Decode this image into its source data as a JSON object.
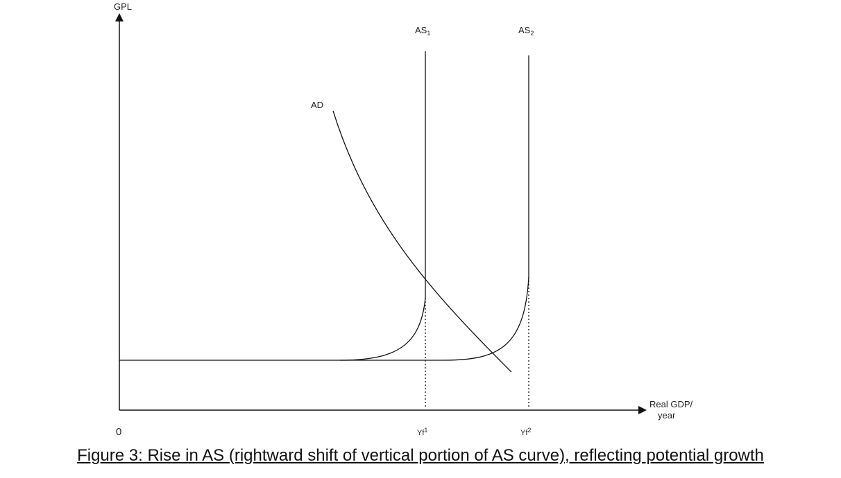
{
  "axes": {
    "y_label": "GPL",
    "x_label_line1": "Real GDP/",
    "x_label_line2": "year",
    "origin_label": "0"
  },
  "curves": {
    "as1": {
      "label": "AS",
      "subscript": "1"
    },
    "as2": {
      "label": "AS",
      "subscript": "2"
    },
    "ad": {
      "label": "AD"
    }
  },
  "ticks": {
    "yf1": {
      "label": "Yf",
      "superscript": "1"
    },
    "yf2": {
      "label": "Yf",
      "superscript": "2"
    }
  },
  "caption": "Figure 3: Rise in AS (rightward shift of vertical portion of AS curve), reflecting potential growth"
}
